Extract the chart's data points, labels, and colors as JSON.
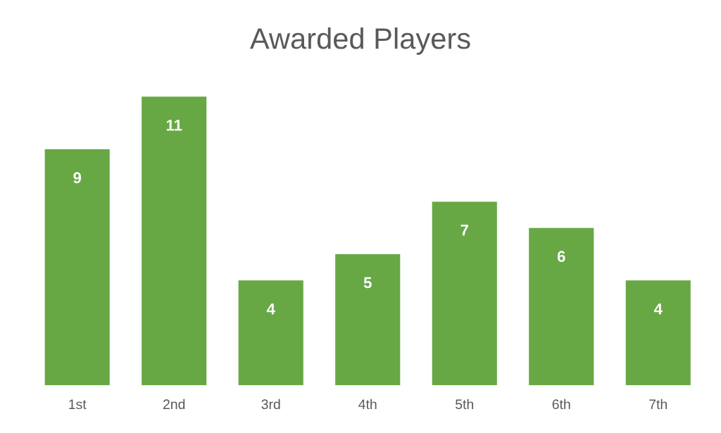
{
  "chart_data": {
    "type": "bar",
    "title": "Awarded Players",
    "categories": [
      "1st",
      "2nd",
      "3rd",
      "4th",
      "5th",
      "6th",
      "7th"
    ],
    "values": [
      9,
      11,
      4,
      5,
      7,
      6,
      4
    ],
    "color": "#67a845",
    "data_labels": true,
    "grid": false,
    "legend": false
  }
}
